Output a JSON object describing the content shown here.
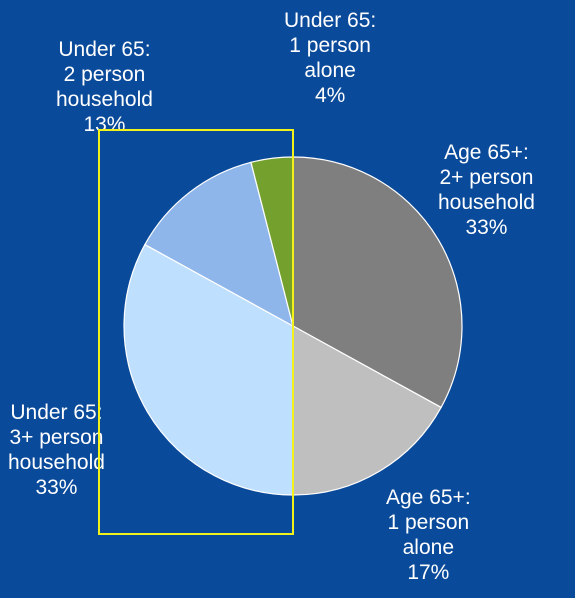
{
  "chart_data": {
    "type": "pie",
    "slices": [
      {
        "label": [
          "Age 65+:",
          "2+ person",
          "household",
          "33%"
        ],
        "value": 33,
        "color": "#7f7f7f"
      },
      {
        "label": [
          "Age 65+:",
          "1 person",
          "alone",
          "17%"
        ],
        "value": 17,
        "color": "#bfbfbf"
      },
      {
        "label": [
          "Under 65:",
          "3+ person",
          "household",
          "33%"
        ],
        "value": 33,
        "color": "#bfdfff"
      },
      {
        "label": [
          "Under 65:",
          "2 person",
          "household",
          "13%"
        ],
        "value": 13,
        "color": "#8fb6ea"
      },
      {
        "label": [
          "Under 65:",
          "1 person",
          "alone",
          "4%"
        ],
        "value": 4,
        "color": "#74a02e"
      }
    ],
    "start": "12 o'clock",
    "direction": "clockwise"
  },
  "colors": {
    "background": "#0a4a9a",
    "slice_border": "#ffffff",
    "highlight": "#f2f21a"
  }
}
